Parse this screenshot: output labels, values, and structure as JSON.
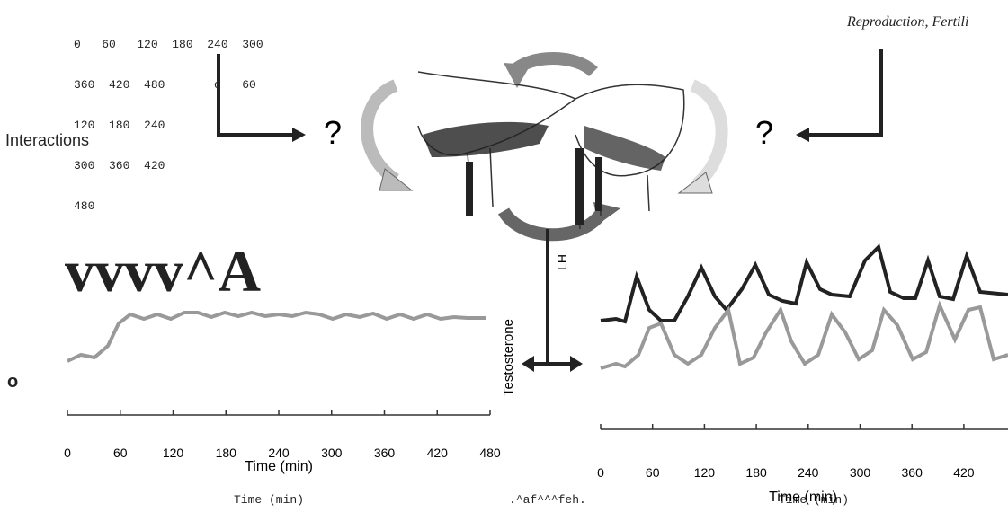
{
  "ocr_header": {
    "lines": [
      "0   60   120  180  240  300",
      "360  420  480       o   60",
      "120  180  240",
      "300  360  420",
      "480"
    ]
  },
  "journal": "Reproduction, Fertili",
  "label_interactions": "Interactions",
  "question_marks": [
    "?",
    "?"
  ],
  "ocr_glyphs": "vvvv^A",
  "hormones": {
    "lh": "LH",
    "testosterone": "Testosterone"
  },
  "ocr_o": "o",
  "left_panel": {
    "x_ticks": [
      0,
      60,
      120,
      180,
      240,
      300,
      360,
      420,
      480
    ],
    "x_label": "Time (min)"
  },
  "right_panel": {
    "x_ticks": [
      0,
      60,
      120,
      180,
      240,
      300,
      360,
      420
    ],
    "x_label": "Time (min)"
  },
  "footer": [
    "Time (min)",
    ".^af^^^feh.",
    "Time (min)"
  ]
}
